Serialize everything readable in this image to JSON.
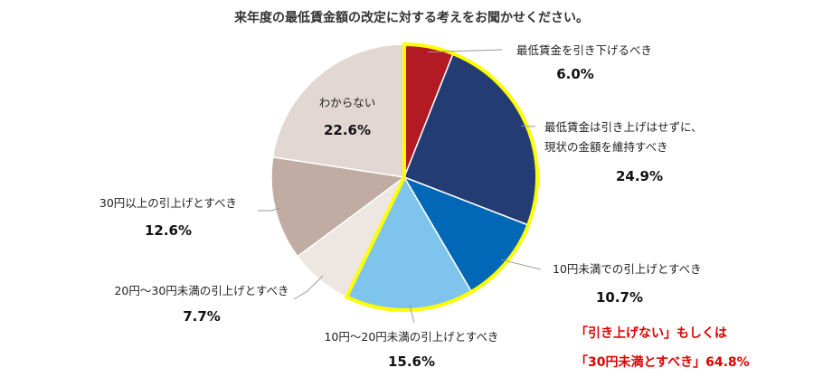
{
  "chart_data": {
    "type": "pie",
    "title": "来年度の最低賃金額の改定に対する考えをお聞かせください。",
    "slices": [
      {
        "label": [
          "最低賃金を引き下げるべき"
        ],
        "value": 6.0,
        "display": "6.0%",
        "color": "#b31b24"
      },
      {
        "label": [
          "最低賃金は引き上げはせずに、",
          "現状の金額を維持すべき"
        ],
        "value": 24.9,
        "display": "24.9%",
        "color": "#233d74"
      },
      {
        "label": [
          "10円未満での引上げとすべき"
        ],
        "value": 10.7,
        "display": "10.7%",
        "color": "#0068b7"
      },
      {
        "label": [
          "10円～20円未満の引上げとすべき"
        ],
        "value": 15.6,
        "display": "15.6%",
        "color": "#7fc4ec"
      },
      {
        "label": [
          "20円～30円未満の引上げとすべき"
        ],
        "value": 7.7,
        "display": "7.7%",
        "color": "#ede6e1"
      },
      {
        "label": [
          "30円以上の引上げとすべき"
        ],
        "value": 12.6,
        "display": "12.6%",
        "color": "#c0aca2"
      },
      {
        "label": [
          "わからない"
        ],
        "value": 22.6,
        "display": "22.6%",
        "color": "#e2d7d2"
      }
    ],
    "start_angle_deg": 0,
    "direction": "clockwise",
    "highlight": {
      "slices": [
        0,
        1,
        2,
        3
      ],
      "color": "#ffff00"
    },
    "annotation": {
      "line1": "「引き上げない」もしくは",
      "line2": "「30円未満とすべき」64.8%",
      "color": "#e00000"
    }
  }
}
